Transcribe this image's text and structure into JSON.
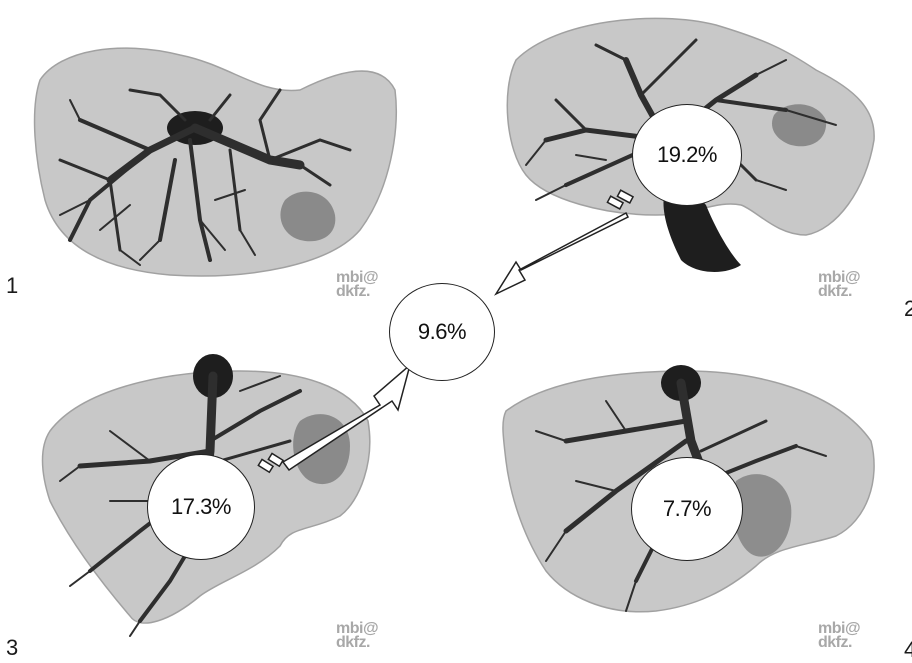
{
  "panels": [
    {
      "number": "1",
      "watermark_line1": "mbi@",
      "watermark_line2": "dkfz.",
      "percentage": ""
    },
    {
      "number": "2",
      "watermark_line1": "mbi@",
      "watermark_line2": "dkfz.",
      "percentage": "19.2%"
    },
    {
      "number": "3",
      "watermark_line1": "mbi@",
      "watermark_line2": "dkfz.",
      "percentage": "17.3%"
    },
    {
      "number": "4",
      "watermark_line1": "mbi@",
      "watermark_line2": "dkfz.",
      "percentage": "7.7%"
    }
  ],
  "center_percentage": "9.6%",
  "colors": {
    "liver_fill": "#c4c4c4",
    "liver_edge": "#9a9a9a",
    "vessel": "#3a3a3a",
    "vessel_dark": "#1e1e1e",
    "tumor": "#7a7a7a",
    "bubble_fill": "#ffffff",
    "bubble_border": "#222222"
  },
  "icons": {
    "liver": "liver-rendering-icon",
    "vessel_tree": "portal-vein-tree-icon",
    "arrow": "pointer-arrow-icon"
  }
}
